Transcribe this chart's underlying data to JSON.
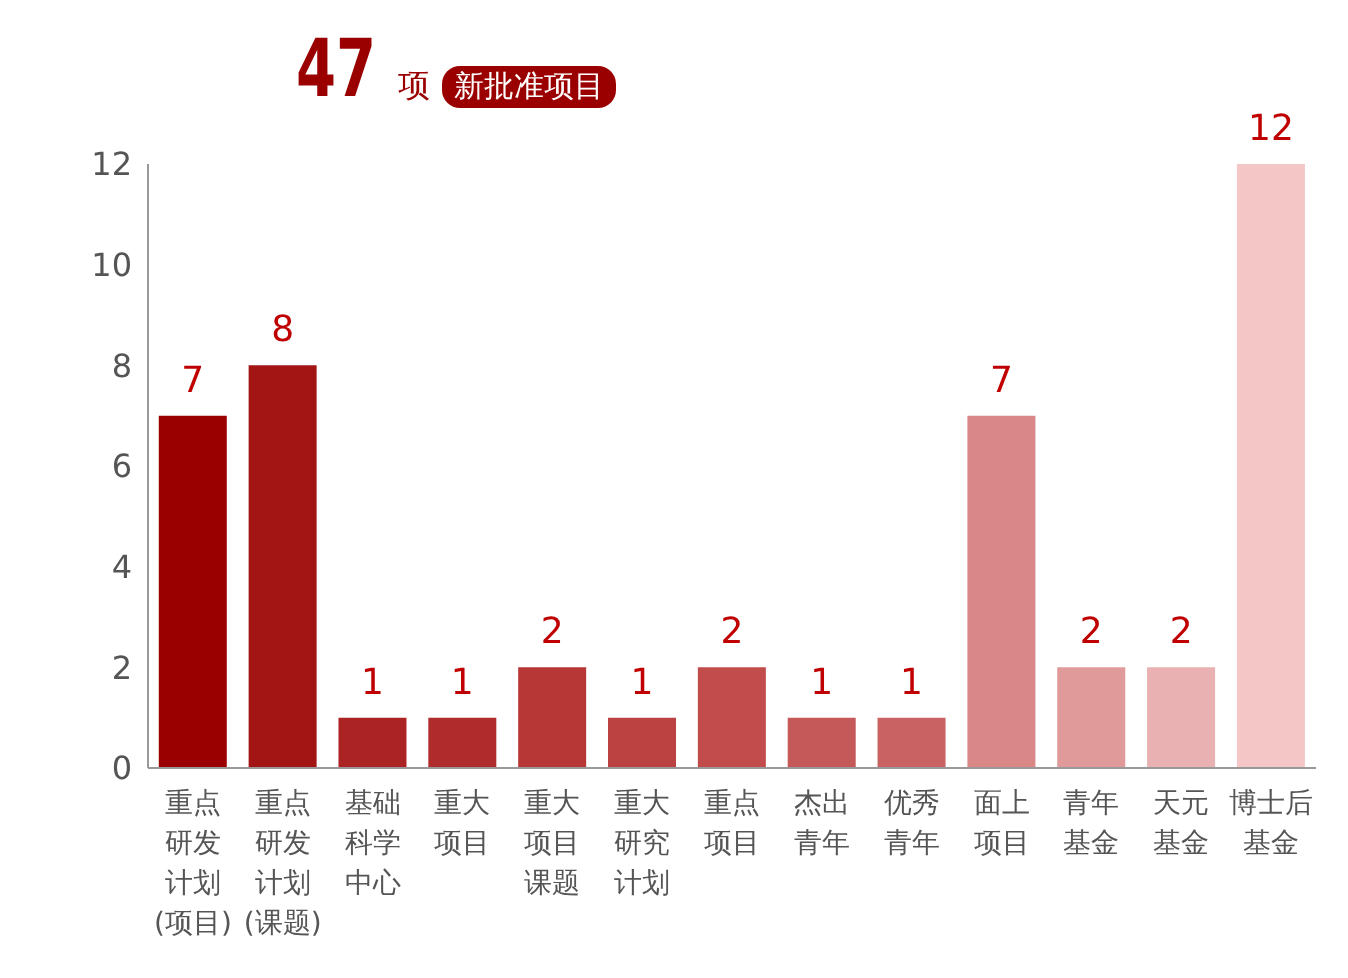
{
  "chart_data": {
    "type": "bar",
    "title": "47",
    "subtitle": "项",
    "annotations": [
      "新批准项目"
    ],
    "categories": [
      "重点研发计划(项目)",
      "重点研发计划(课题)",
      "基础科学中心",
      "重大项目",
      "重大项目课题",
      "重大研究计划",
      "重点项目",
      "杰出青年",
      "优秀青年",
      "面上项目",
      "青年基金",
      "天元基金",
      "博士后基金"
    ],
    "values": [
      7,
      8,
      1,
      1,
      2,
      1,
      2,
      1,
      1,
      7,
      2,
      2,
      12
    ],
    "colors": [
      "#9b0000",
      "#a31414",
      "#ab2323",
      "#b02b2b",
      "#b73636",
      "#bc4141",
      "#c24c4c",
      "#c55858",
      "#c96363",
      "#d98787",
      "#e09a9a",
      "#e9b1b1",
      "#f4c6c6"
    ],
    "ylim": [
      0,
      12
    ],
    "yticks": [
      0,
      2,
      4,
      6,
      8,
      10,
      12
    ],
    "data_labels": true
  }
}
